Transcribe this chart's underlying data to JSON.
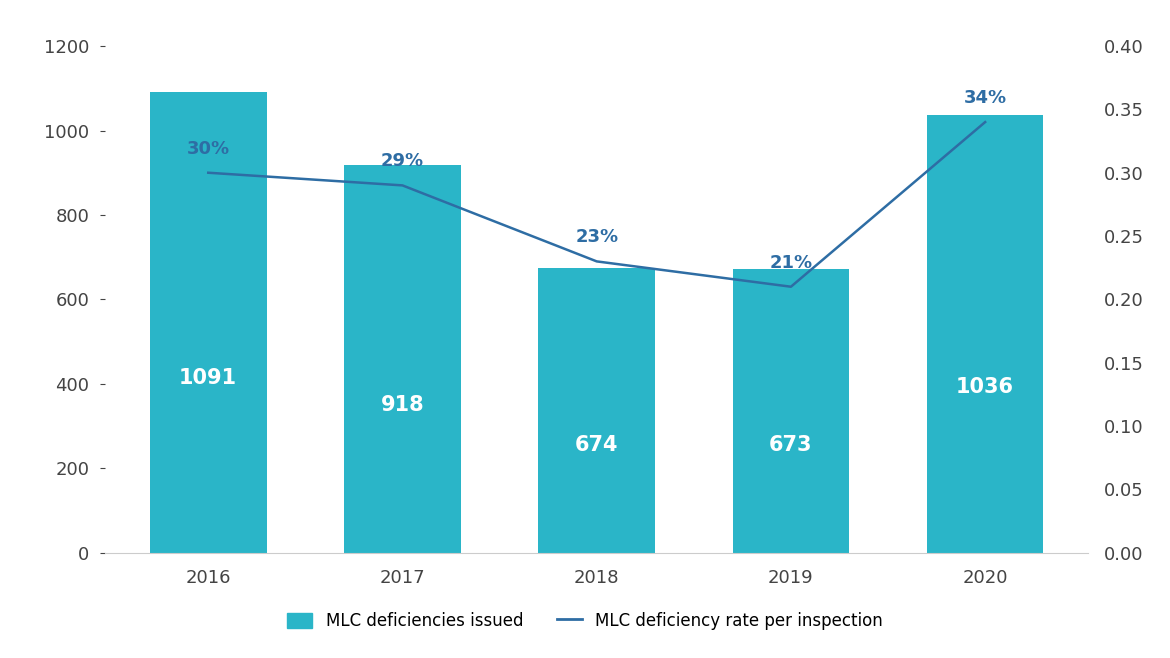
{
  "years": [
    "2016",
    "2017",
    "2018",
    "2019",
    "2020"
  ],
  "bar_values": [
    1091,
    918,
    674,
    673,
    1036
  ],
  "bar_color": "#2ab5c8",
  "line_values": [
    0.3,
    0.29,
    0.23,
    0.21,
    0.34
  ],
  "line_color": "#2e6da4",
  "pct_labels": [
    "30%",
    "29%",
    "23%",
    "21%",
    "34%"
  ],
  "pct_label_color": "#2e6da4",
  "bar_labels": [
    "1091",
    "918",
    "674",
    "673",
    "1036"
  ],
  "ylim_left": [
    0,
    1200
  ],
  "ylim_right": [
    0,
    0.4
  ],
  "yticks_left": [
    0,
    200,
    400,
    600,
    800,
    1000,
    1200
  ],
  "yticks_right": [
    0,
    0.05,
    0.1,
    0.15,
    0.2,
    0.25,
    0.3,
    0.35,
    0.4
  ],
  "legend_bar_label": "MLC deficiencies issued",
  "legend_line_label": "MLC deficiency rate per inspection",
  "background_color": "#ffffff",
  "bar_label_fontsize": 15,
  "pct_label_fontsize": 13,
  "tick_fontsize": 13,
  "legend_fontsize": 12,
  "axis_color": "#888888",
  "tick_color": "#444444"
}
